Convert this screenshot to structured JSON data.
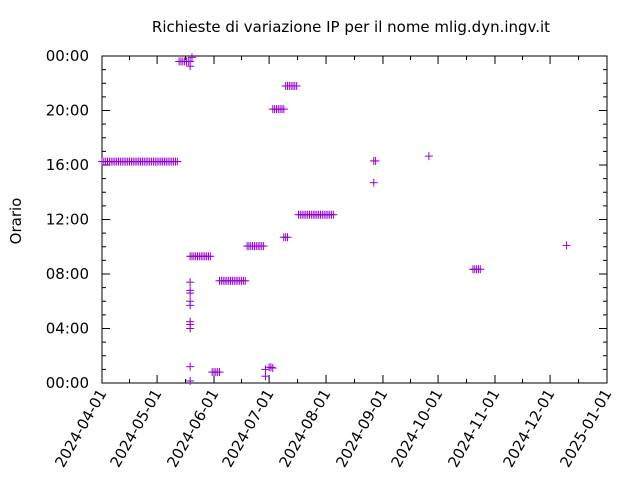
{
  "chart_data": {
    "type": "scatter",
    "title": "Richieste di variazione IP per il nome mlig.dyn.ingv.it",
    "xlabel": "",
    "ylabel": "Orario",
    "x_type": "date",
    "xlim": [
      "2024-04-01",
      "2025-01-01"
    ],
    "ylim": [
      0,
      24
    ],
    "x_ticks": [
      "2024-04-01",
      "2024-05-01",
      "2024-06-01",
      "2024-07-01",
      "2024-08-01",
      "2024-09-01",
      "2024-10-01",
      "2024-11-01",
      "2024-12-01",
      "2025-01-01"
    ],
    "y_ticks": [
      {
        "value": 0,
        "label": "00:00"
      },
      {
        "value": 4,
        "label": "04:00"
      },
      {
        "value": 8,
        "label": "08:00"
      },
      {
        "value": 12,
        "label": "12:00"
      },
      {
        "value": 16,
        "label": "16:00"
      },
      {
        "value": 20,
        "label": "20:00"
      },
      {
        "value": 24,
        "label": "00:00"
      }
    ],
    "grid": false,
    "marker": "+",
    "color": "#9400D3",
    "series": [
      {
        "points": [
          [
            "2024-04-01",
            16.25
          ],
          [
            "2024-04-02",
            16.25
          ],
          [
            "2024-04-03",
            16.25
          ],
          [
            "2024-04-04",
            16.25
          ],
          [
            "2024-04-05",
            16.25
          ],
          [
            "2024-04-06",
            16.25
          ],
          [
            "2024-04-07",
            16.25
          ],
          [
            "2024-04-08",
            16.25
          ],
          [
            "2024-04-09",
            16.25
          ],
          [
            "2024-04-10",
            16.25
          ],
          [
            "2024-04-11",
            16.25
          ],
          [
            "2024-04-12",
            16.25
          ],
          [
            "2024-04-13",
            16.25
          ],
          [
            "2024-04-14",
            16.25
          ],
          [
            "2024-04-15",
            16.25
          ],
          [
            "2024-04-16",
            16.25
          ],
          [
            "2024-04-17",
            16.25
          ],
          [
            "2024-04-18",
            16.25
          ],
          [
            "2024-04-19",
            16.25
          ],
          [
            "2024-04-20",
            16.25
          ],
          [
            "2024-04-21",
            16.25
          ],
          [
            "2024-04-22",
            16.25
          ],
          [
            "2024-04-23",
            16.25
          ],
          [
            "2024-04-24",
            16.25
          ],
          [
            "2024-04-25",
            16.25
          ],
          [
            "2024-04-26",
            16.25
          ],
          [
            "2024-04-27",
            16.25
          ],
          [
            "2024-04-28",
            16.25
          ],
          [
            "2024-04-29",
            16.25
          ],
          [
            "2024-04-30",
            16.25
          ],
          [
            "2024-05-01",
            16.25
          ],
          [
            "2024-05-02",
            16.25
          ],
          [
            "2024-05-03",
            16.25
          ],
          [
            "2024-05-04",
            16.25
          ],
          [
            "2024-05-05",
            16.25
          ],
          [
            "2024-05-06",
            16.25
          ],
          [
            "2024-05-07",
            16.25
          ],
          [
            "2024-05-08",
            16.25
          ],
          [
            "2024-05-09",
            16.25
          ],
          [
            "2024-05-10",
            16.25
          ],
          [
            "2024-05-11",
            16.25
          ],
          [
            "2024-05-12",
            16.25
          ],
          [
            "2024-05-13",
            23.6
          ],
          [
            "2024-05-14",
            23.6
          ],
          [
            "2024-05-15",
            23.6
          ],
          [
            "2024-05-16",
            23.6
          ],
          [
            "2024-05-17",
            23.6
          ],
          [
            "2024-05-18",
            23.6
          ],
          [
            "2024-05-19",
            23.6
          ],
          [
            "2024-05-19",
            23.25
          ],
          [
            "2024-05-20",
            23.9
          ],
          [
            "2024-05-19",
            9.3
          ],
          [
            "2024-05-20",
            9.3
          ],
          [
            "2024-05-21",
            9.3
          ],
          [
            "2024-05-22",
            9.3
          ],
          [
            "2024-05-23",
            9.3
          ],
          [
            "2024-05-24",
            9.3
          ],
          [
            "2024-05-25",
            9.3
          ],
          [
            "2024-05-26",
            9.3
          ],
          [
            "2024-05-27",
            9.3
          ],
          [
            "2024-05-28",
            9.3
          ],
          [
            "2024-05-29",
            9.3
          ],
          [
            "2024-05-30",
            9.3
          ],
          [
            "2024-05-19",
            7.4
          ],
          [
            "2024-05-19",
            6.8
          ],
          [
            "2024-05-19",
            6.6
          ],
          [
            "2024-05-19",
            6.0
          ],
          [
            "2024-05-19",
            5.7
          ],
          [
            "2024-05-19",
            4.5
          ],
          [
            "2024-05-19",
            4.3
          ],
          [
            "2024-05-19",
            4.0
          ],
          [
            "2024-05-19",
            1.2
          ],
          [
            "2024-05-19",
            0.15
          ],
          [
            "2024-05-31",
            0.8
          ],
          [
            "2024-06-01",
            0.8
          ],
          [
            "2024-06-02",
            0.8
          ],
          [
            "2024-06-03",
            0.8
          ],
          [
            "2024-06-04",
            0.8
          ],
          [
            "2024-06-04",
            7.5
          ],
          [
            "2024-06-05",
            7.5
          ],
          [
            "2024-06-06",
            7.5
          ],
          [
            "2024-06-07",
            7.5
          ],
          [
            "2024-06-08",
            7.5
          ],
          [
            "2024-06-09",
            7.5
          ],
          [
            "2024-06-10",
            7.5
          ],
          [
            "2024-06-11",
            7.5
          ],
          [
            "2024-06-12",
            7.5
          ],
          [
            "2024-06-13",
            7.5
          ],
          [
            "2024-06-14",
            7.5
          ],
          [
            "2024-06-15",
            7.5
          ],
          [
            "2024-06-16",
            7.5
          ],
          [
            "2024-06-17",
            7.5
          ],
          [
            "2024-06-18",
            7.5
          ],
          [
            "2024-06-19",
            10.05
          ],
          [
            "2024-06-20",
            10.05
          ],
          [
            "2024-06-21",
            10.05
          ],
          [
            "2024-06-22",
            10.05
          ],
          [
            "2024-06-23",
            10.05
          ],
          [
            "2024-06-24",
            10.05
          ],
          [
            "2024-06-25",
            10.05
          ],
          [
            "2024-06-26",
            10.05
          ],
          [
            "2024-06-27",
            10.05
          ],
          [
            "2024-06-28",
            10.05
          ],
          [
            "2024-06-29",
            0.5
          ],
          [
            "2024-06-29",
            1.0
          ],
          [
            "2024-07-01",
            1.15
          ],
          [
            "2024-07-02",
            1.15
          ],
          [
            "2024-07-03",
            1.1
          ],
          [
            "2024-07-03",
            20.1
          ],
          [
            "2024-07-04",
            20.1
          ],
          [
            "2024-07-05",
            20.1
          ],
          [
            "2024-07-06",
            20.1
          ],
          [
            "2024-07-07",
            20.1
          ],
          [
            "2024-07-08",
            20.1
          ],
          [
            "2024-07-09",
            20.1
          ],
          [
            "2024-07-10",
            21.8
          ],
          [
            "2024-07-11",
            21.8
          ],
          [
            "2024-07-12",
            21.8
          ],
          [
            "2024-07-13",
            21.8
          ],
          [
            "2024-07-14",
            21.8
          ],
          [
            "2024-07-15",
            21.8
          ],
          [
            "2024-07-16",
            21.8
          ],
          [
            "2024-07-09",
            10.7
          ],
          [
            "2024-07-10",
            10.7
          ],
          [
            "2024-07-11",
            10.7
          ],
          [
            "2024-07-17",
            12.35
          ],
          [
            "2024-07-18",
            12.35
          ],
          [
            "2024-07-19",
            12.35
          ],
          [
            "2024-07-20",
            12.35
          ],
          [
            "2024-07-21",
            12.35
          ],
          [
            "2024-07-22",
            12.35
          ],
          [
            "2024-07-23",
            12.35
          ],
          [
            "2024-07-24",
            12.35
          ],
          [
            "2024-07-25",
            12.35
          ],
          [
            "2024-07-26",
            12.35
          ],
          [
            "2024-07-27",
            12.35
          ],
          [
            "2024-07-28",
            12.35
          ],
          [
            "2024-07-29",
            12.35
          ],
          [
            "2024-07-30",
            12.35
          ],
          [
            "2024-07-31",
            12.35
          ],
          [
            "2024-08-01",
            12.35
          ],
          [
            "2024-08-02",
            12.35
          ],
          [
            "2024-08-03",
            12.35
          ],
          [
            "2024-08-04",
            12.35
          ],
          [
            "2024-08-05",
            12.35
          ],
          [
            "2024-08-27",
            14.7
          ],
          [
            "2024-08-27",
            16.3
          ],
          [
            "2024-08-28",
            16.3
          ],
          [
            "2024-09-26",
            16.65
          ],
          [
            "2024-10-20",
            8.35
          ],
          [
            "2024-10-21",
            8.35
          ],
          [
            "2024-10-22",
            8.35
          ],
          [
            "2024-10-23",
            8.35
          ],
          [
            "2024-10-24",
            8.35
          ],
          [
            "2024-12-10",
            10.1
          ]
        ]
      }
    ]
  }
}
